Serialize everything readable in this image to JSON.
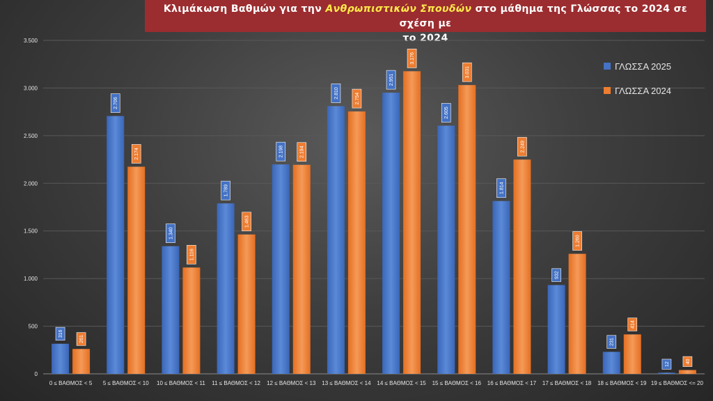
{
  "chart_data": {
    "type": "bar",
    "title_parts": [
      "Κλιμάκωση Βαθμών για την ",
      "Ανθρωπιστικών Σπουδών",
      " στο μάθημα της Γλώσσας το 2024 σε σχέση με",
      "το 2024"
    ],
    "categories": [
      "0 ≤ ΒΑΘΜΟΣ < 5",
      "5 ≤ ΒΑΘΜΟΣ < 10",
      "10 ≤ ΒΑΘΜΟΣ < 11",
      "11 ≤ ΒΑΘΜΟΣ < 12",
      "12 ≤ ΒΑΘΜΟΣ < 13",
      "13 ≤ ΒΑΘΜΟΣ < 14",
      "14 ≤ ΒΑΘΜΟΣ < 15",
      "15 ≤ ΒΑΘΜΟΣ < 16",
      "16 ≤ ΒΑΘΜΟΣ < 17",
      "17 ≤ ΒΑΘΜΟΣ < 18",
      "18 ≤ ΒΑΘΜΟΣ < 19",
      "19 ≤ ΒΑΘΜΟΣ <= 20"
    ],
    "series": [
      {
        "name": "ΓΛΩΣΣΑ 2025",
        "color": "#4472c4",
        "values": [
          316,
          2706,
          1340,
          1789,
          2198,
          2810,
          2951,
          2605,
          1814,
          932,
          231,
          12
        ],
        "labels": [
          "316",
          "2.706",
          "1.340",
          "1.789",
          "2.198",
          "2.810",
          "2.951",
          "2.605",
          "1.814",
          "932",
          "231",
          "12"
        ]
      },
      {
        "name": "ΓΛΩΣΣΑ 2024",
        "color": "#ed7d31",
        "values": [
          261,
          2174,
          1116,
          1463,
          2194,
          2754,
          3176,
          3031,
          2249,
          1260,
          414,
          40
        ],
        "labels": [
          "261",
          "2.174",
          "1.116",
          "1.463",
          "2.194",
          "2.754",
          "3.176",
          "3.031",
          "2.249",
          "1.260",
          "414",
          "40"
        ]
      }
    ],
    "ylim": [
      0,
      3500
    ],
    "yticks": [
      0,
      500,
      1000,
      1500,
      2000,
      2500,
      3000,
      3500
    ],
    "ytick_labels": [
      "0",
      "500",
      "1.000",
      "1.500",
      "2.000",
      "2.500",
      "3.000",
      "3.500"
    ],
    "grid": true,
    "legend_position": "right"
  }
}
